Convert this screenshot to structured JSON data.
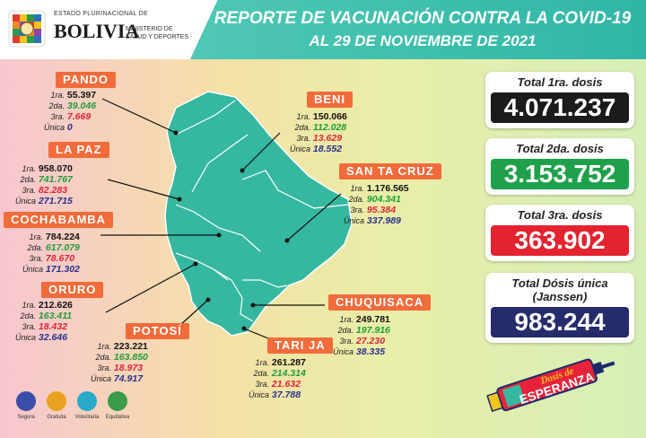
{
  "header": {
    "estado_text": "ESTADO PLURINACIONAL DE",
    "bolivia_text": "BOLIVIA",
    "ministerio_line1": "MINISTERIO DE",
    "ministerio_line2": "SALUD Y DEPORTES",
    "title_line1": "REPORTE DE VACUNACIÓN CONTRA LA COVID-19",
    "title_line2": "AL 29 DE NOVIEMBRE DE 2021"
  },
  "dose_labels": {
    "d1": "1ra.",
    "d2": "2da.",
    "d3": "3ra.",
    "unica": "Única"
  },
  "regions": {
    "pando": {
      "name": "PANDO",
      "d1": "55.397",
      "d2": "39.046",
      "d3": "7.669",
      "unica": "0"
    },
    "beni": {
      "name": "BENI",
      "d1": "150.066",
      "d2": "112.028",
      "d3": "13.629",
      "unica": "18.552"
    },
    "lapaz": {
      "name": "LA PAZ",
      "d1": "958.070",
      "d2": "741.767",
      "d3": "82.283",
      "unica": "271.715"
    },
    "santacruz": {
      "name": "SAN TA CRUZ",
      "d1": "1.176.565",
      "d2": "904.341",
      "d3": "95.384",
      "unica": "337.989"
    },
    "cochabamba": {
      "name": "COCHABAMBA",
      "d1": "784.224",
      "d2": "617.079",
      "d3": "78.670",
      "unica": "171.302"
    },
    "oruro": {
      "name": "ORURO",
      "d1": "212.626",
      "d2": "163.411",
      "d3": "18.432",
      "unica": "32.646"
    },
    "chuquisaca": {
      "name": "CHUQUISACA",
      "d1": "249.781",
      "d2": "197.916",
      "d3": "27.230",
      "unica": "38.335"
    },
    "potosi": {
      "name": "POTOSÍ",
      "d1": "223.221",
      "d2": "163.850",
      "d3": "18.973",
      "unica": "74.917"
    },
    "tarija": {
      "name": "TARI JA",
      "d1": "261.287",
      "d2": "214.314",
      "d3": "21.632",
      "unica": "37.788"
    }
  },
  "totals": {
    "d1": {
      "title": "Total 1ra. dosis",
      "value": "4.071.237",
      "color": "#1b1b1b"
    },
    "d2": {
      "title": "Total 2da. dosis",
      "value": "3.153.752",
      "color": "#1fa14b"
    },
    "d3": {
      "title": "Total 3ra. dosis",
      "value": "363.902",
      "color": "#e3232f"
    },
    "unica": {
      "title": "Total Dósis única",
      "subtitle": "(Janssen)",
      "value": "983.244",
      "color": "#252c6b"
    }
  },
  "footer": {
    "icons": [
      {
        "label": "Segura",
        "icon": "shield-icon",
        "color": "#3b4fa8"
      },
      {
        "label": "Gratuita",
        "icon": "coin-icon",
        "color": "#e9a21f"
      },
      {
        "label": "Voluntaria",
        "icon": "person-icon",
        "color": "#2aa9c9"
      },
      {
        "label": "Equitativa",
        "icon": "balance-icon",
        "color": "#3a9b4a"
      }
    ],
    "badge_line1": "Dosis de",
    "badge_line2": "ESPERANZA"
  },
  "colors": {
    "region_tag": "#f26b3a",
    "map_fill": "#35b89f",
    "header_band": "#3cbfad"
  }
}
